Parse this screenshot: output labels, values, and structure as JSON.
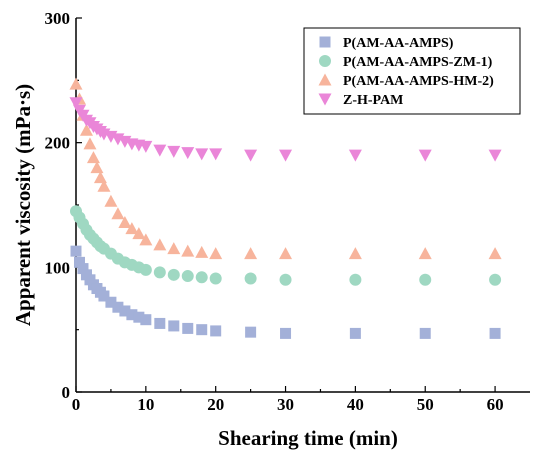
{
  "chart_data": {
    "type": "scatter",
    "title": "",
    "xlabel": "Shearing time (min)",
    "ylabel": "Apparent viscosity (mPa·s)",
    "xlim": [
      0,
      65
    ],
    "ylim": [
      0,
      300
    ],
    "xticks": [
      "0",
      "10",
      "20",
      "30",
      "40",
      "50",
      "60"
    ],
    "yticks": [
      "0",
      "100",
      "200",
      "300"
    ],
    "grid": false,
    "legend_position": "top-right",
    "x": [
      0,
      0.5,
      1,
      1.5,
      2,
      2.5,
      3,
      3.5,
      4,
      5,
      6,
      7,
      8,
      9,
      10,
      12,
      14,
      16,
      18,
      20,
      25,
      30,
      40,
      50,
      60
    ],
    "series": [
      {
        "name": "P(AM-AA-AMPS)",
        "marker": "square",
        "color": "#a3b0d8",
        "values": [
          113,
          104,
          99,
          94,
          90,
          86,
          83,
          80,
          77,
          72,
          68,
          65,
          62,
          60,
          58,
          55,
          53,
          51,
          50,
          49,
          48,
          47,
          47,
          47,
          47
        ]
      },
      {
        "name": "P(AM-AA-AMPS-ZM-1)",
        "marker": "circle",
        "color": "#9fd8c2",
        "values": [
          145,
          140,
          135,
          130,
          126,
          123,
          120,
          117,
          115,
          111,
          107,
          104,
          102,
          100,
          98,
          96,
          94,
          93,
          92,
          91,
          91,
          90,
          90,
          90,
          90
        ]
      },
      {
        "name": "P(AM-AA-AMPS-HM-2)",
        "marker": "triangle-up",
        "color": "#f7b49c",
        "values": [
          247,
          235,
          222,
          210,
          199,
          188,
          180,
          172,
          165,
          153,
          143,
          136,
          131,
          127,
          122,
          118,
          115,
          113,
          112,
          111,
          111,
          111,
          111,
          111,
          111
        ]
      },
      {
        "name": "Z-H-PAM",
        "marker": "triangle-down",
        "color": "#ea86d8",
        "values": [
          232,
          226,
          222,
          218,
          216,
          213,
          211,
          209,
          207,
          205,
          203,
          201,
          199,
          198,
          197,
          194,
          193,
          192,
          191,
          191,
          190,
          190,
          190,
          190,
          190
        ]
      }
    ]
  }
}
